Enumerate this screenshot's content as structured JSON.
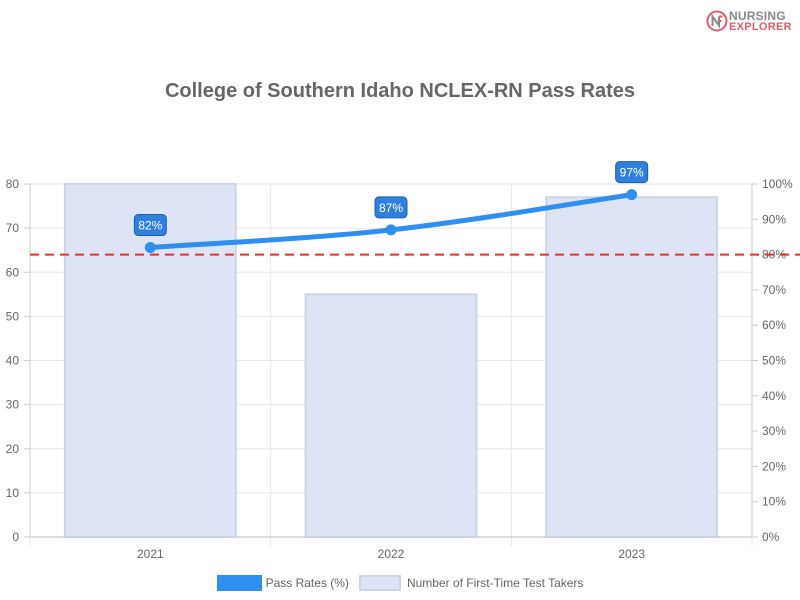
{
  "logo": {
    "line1": "NURSING",
    "line2": "EXPLORER"
  },
  "chart_data": {
    "type": "bar",
    "title": "College of Southern Idaho NCLEX-RN Pass Rates",
    "categories": [
      "2021",
      "2022",
      "2023"
    ],
    "series": [
      {
        "name": "Number of First-Time Test Takers",
        "type": "bar",
        "axis": "left",
        "values": [
          80,
          55,
          77
        ],
        "color": "#dde4f5",
        "border": "#ccd4e6"
      },
      {
        "name": "Pass Rates (%)",
        "type": "line",
        "axis": "right",
        "values": [
          82,
          87,
          97
        ],
        "labels": [
          "82%",
          "87%",
          "97%"
        ],
        "color": "#2f8ff0"
      }
    ],
    "y_left": {
      "ylim": [
        0,
        80
      ],
      "ticks": [
        "0",
        "10",
        "20",
        "30",
        "40",
        "50",
        "60",
        "70",
        "80"
      ]
    },
    "y_right": {
      "ylim": [
        0,
        100
      ],
      "ticks": [
        "0%",
        "10%",
        "20%",
        "30%",
        "40%",
        "50%",
        "60%",
        "70%",
        "80%",
        "90%",
        "100%"
      ]
    },
    "reference_line": {
      "value": 80,
      "axis": "right",
      "color": "#e53030",
      "style": "dashed"
    },
    "grid": true,
    "legend_position": "bottom"
  }
}
